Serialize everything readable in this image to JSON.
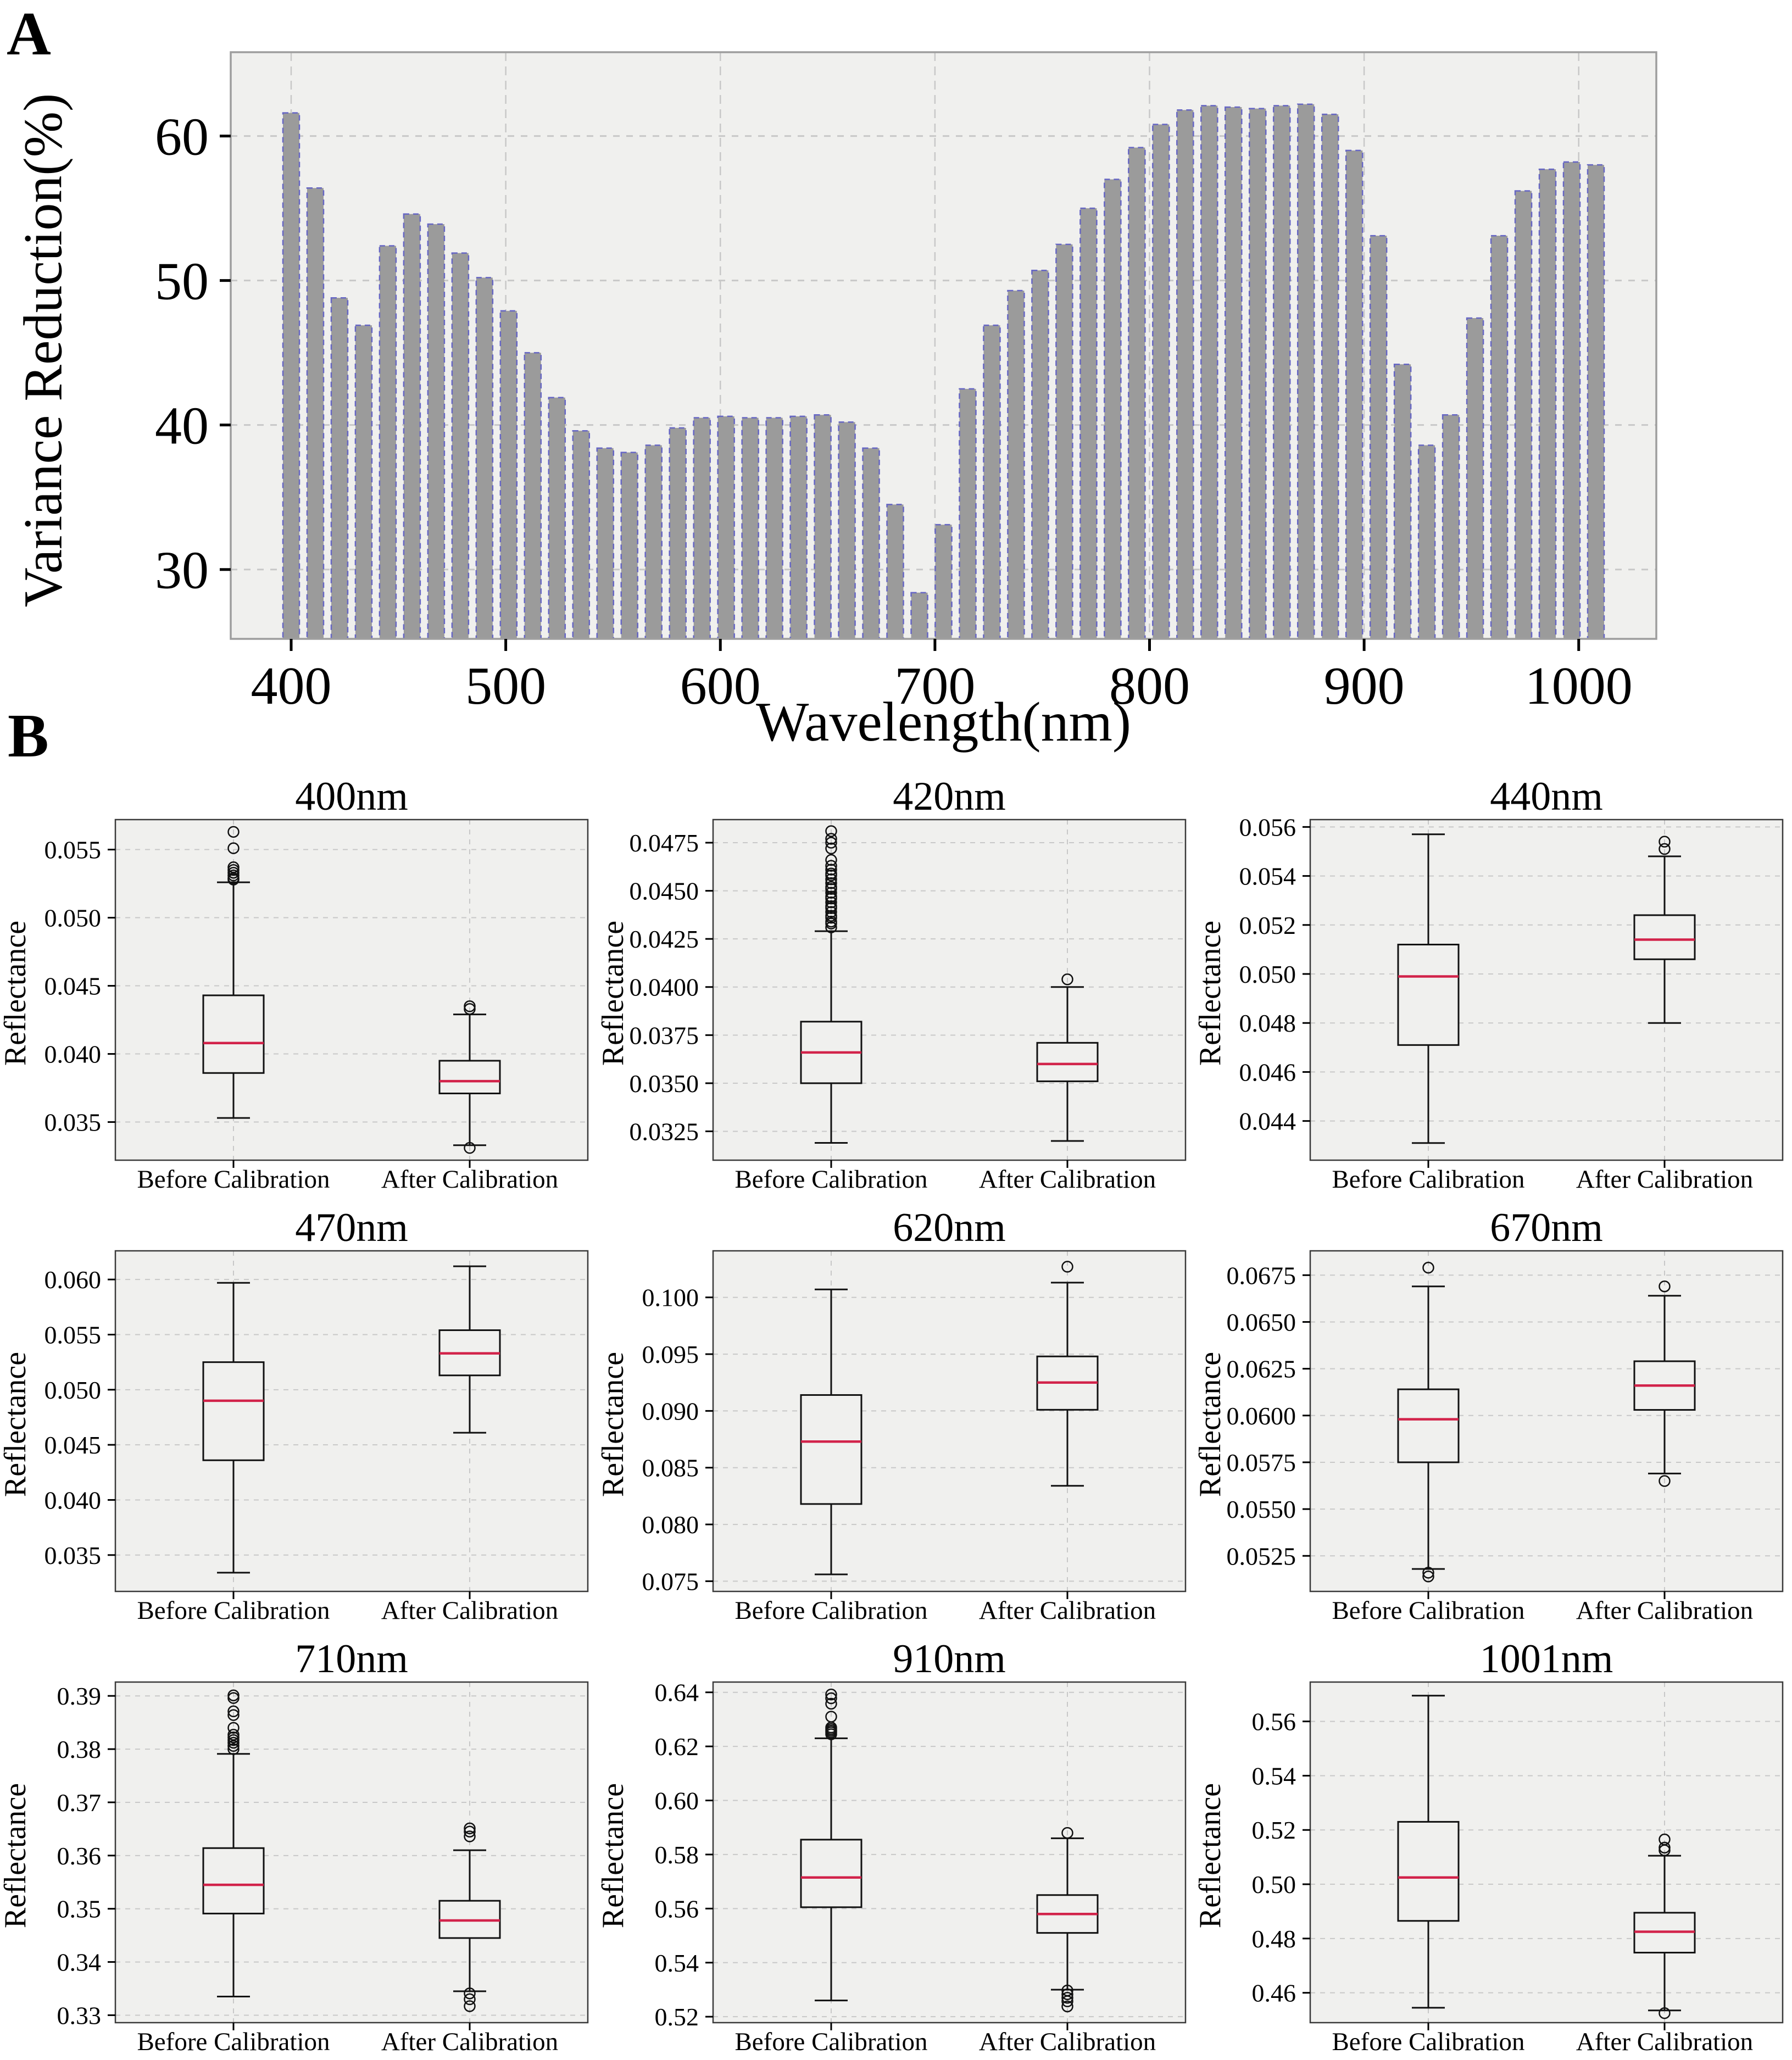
{
  "page": {
    "panel_a_label": "A",
    "panel_b_label": "B"
  },
  "colors": {
    "figure_bg": "#ffffff",
    "plot_bg": "#f0f0ee",
    "grid": "#c8c8c8",
    "bar_fill": "#9b9b9b",
    "bar_edge": "#6666c4",
    "spine_a": "#9e9e9e",
    "spine_b": "#3a3a3a",
    "box_line": "#111111",
    "median": "#d2234a",
    "tick_text": "#000000"
  },
  "chart_data": [
    {
      "type": "bar",
      "panel": "A",
      "title": "",
      "xlabel": "Wavelength(nm)",
      "ylabel": "Variance Reduction(%)",
      "xticks": [
        400,
        500,
        600,
        700,
        800,
        900,
        1000
      ],
      "yticks": [
        30,
        40,
        50,
        60
      ],
      "ylim": [
        25.2,
        65.8
      ],
      "grid": true,
      "x_wavelength_nm": [
        400,
        411,
        423,
        434,
        445,
        456,
        468,
        479,
        490,
        501,
        513,
        524,
        535,
        546,
        558,
        569,
        580,
        591,
        603,
        614,
        625,
        636,
        648,
        659,
        670,
        682,
        693,
        704,
        715,
        727,
        738,
        749,
        760,
        772,
        783,
        794,
        805,
        817,
        828,
        839,
        850,
        862,
        873,
        884,
        895,
        907,
        918,
        929,
        940,
        952,
        963,
        974,
        985,
        997,
        1008
      ],
      "values_percent": [
        61.6,
        56.4,
        48.8,
        46.9,
        52.4,
        54.6,
        53.9,
        51.9,
        50.2,
        47.9,
        45.0,
        41.9,
        39.6,
        38.4,
        38.1,
        38.6,
        39.8,
        40.5,
        40.6,
        40.5,
        40.5,
        40.6,
        40.7,
        40.2,
        38.4,
        34.5,
        28.4,
        33.1,
        42.5,
        46.9,
        49.3,
        50.7,
        52.5,
        55.0,
        57.0,
        59.2,
        60.8,
        61.8,
        62.1,
        62.0,
        61.9,
        62.1,
        62.2,
        61.5,
        59.0,
        53.1,
        44.2,
        38.6,
        40.7,
        47.4,
        53.1,
        56.2,
        57.7,
        58.2,
        58.0
      ]
    },
    {
      "type": "boxplot",
      "panel": "B",
      "ylabel": "Reflectance",
      "categories": [
        "Before Calibration",
        "After Calibration"
      ],
      "subplots": [
        {
          "title": "400nm",
          "ticklabels": [
            "0.035",
            "0.040",
            "0.045",
            "0.050",
            "0.055"
          ],
          "tickvals": [
            0.035,
            0.04,
            0.045,
            0.05,
            0.055
          ],
          "ylim": [
            0.0322,
            0.0572
          ],
          "before": {
            "whislo": 0.0353,
            "q1": 0.0386,
            "med": 0.0408,
            "q3": 0.0443,
            "whishi": 0.0526,
            "outliers": [
              0.0528,
              0.0529,
              0.0531,
              0.0533,
              0.0535,
              0.0537,
              0.0551,
              0.0563
            ]
          },
          "after": {
            "whislo": 0.0333,
            "q1": 0.0371,
            "med": 0.038,
            "q3": 0.0395,
            "whishi": 0.0429,
            "outliers": [
              0.0433,
              0.0435,
              0.0331
            ]
          }
        },
        {
          "title": "420nm",
          "ticklabels": [
            "0.0325",
            "0.0350",
            "0.0375",
            "0.0400",
            "0.0425",
            "0.0450",
            "0.0475"
          ],
          "tickvals": [
            0.0325,
            0.035,
            0.0375,
            0.04,
            0.0425,
            0.045,
            0.0475
          ],
          "ylim": [
            0.031,
            0.0487
          ],
          "before": {
            "whislo": 0.0319,
            "q1": 0.035,
            "med": 0.0366,
            "q3": 0.0382,
            "whishi": 0.0429,
            "outliers": [
              0.0431,
              0.0433,
              0.0434,
              0.0436,
              0.0437,
              0.0439,
              0.0441,
              0.0442,
              0.0444,
              0.0446,
              0.0447,
              0.0449,
              0.0451,
              0.0452,
              0.0454,
              0.0456,
              0.0458,
              0.0459,
              0.0461,
              0.0463,
              0.0466,
              0.0472,
              0.0475,
              0.0477,
              0.0481
            ]
          },
          "after": {
            "whislo": 0.032,
            "q1": 0.0351,
            "med": 0.036,
            "q3": 0.0371,
            "whishi": 0.04,
            "outliers": [
              0.0404
            ]
          }
        },
        {
          "title": "440nm",
          "ticklabels": [
            "0.044",
            "0.046",
            "0.048",
            "0.050",
            "0.052",
            "0.054",
            "0.056"
          ],
          "tickvals": [
            0.044,
            0.046,
            0.048,
            0.05,
            0.052,
            0.054,
            0.056
          ],
          "ylim": [
            0.0424,
            0.0563
          ],
          "before": {
            "whislo": 0.0431,
            "q1": 0.0471,
            "med": 0.0499,
            "q3": 0.0512,
            "whishi": 0.0557,
            "outliers": []
          },
          "after": {
            "whislo": 0.048,
            "q1": 0.0506,
            "med": 0.0514,
            "q3": 0.0524,
            "whishi": 0.0548,
            "outliers": [
              0.0551,
              0.0554
            ]
          }
        },
        {
          "title": "470nm",
          "ticklabels": [
            "0.035",
            "0.040",
            "0.045",
            "0.050",
            "0.055",
            "0.060"
          ],
          "tickvals": [
            0.035,
            0.04,
            0.045,
            0.05,
            0.055,
            0.06
          ],
          "ylim": [
            0.0317,
            0.0626
          ],
          "before": {
            "whislo": 0.0334,
            "q1": 0.0436,
            "med": 0.049,
            "q3": 0.0525,
            "whishi": 0.0597,
            "outliers": []
          },
          "after": {
            "whislo": 0.0461,
            "q1": 0.0513,
            "med": 0.0533,
            "q3": 0.0554,
            "whishi": 0.0612,
            "outliers": []
          }
        },
        {
          "title": "620nm",
          "ticklabels": [
            "0.075",
            "0.080",
            "0.085",
            "0.090",
            "0.095",
            "0.100"
          ],
          "tickvals": [
            0.075,
            0.08,
            0.085,
            0.09,
            0.095,
            0.1
          ],
          "ylim": [
            0.0741,
            0.1041
          ],
          "before": {
            "whislo": 0.0756,
            "q1": 0.0818,
            "med": 0.0873,
            "q3": 0.0914,
            "whishi": 0.1007,
            "outliers": []
          },
          "after": {
            "whislo": 0.0834,
            "q1": 0.0901,
            "med": 0.0925,
            "q3": 0.0948,
            "whishi": 0.1013,
            "outliers": [
              0.1027
            ]
          }
        },
        {
          "title": "670nm",
          "ticklabels": [
            "0.0525",
            "0.0550",
            "0.0575",
            "0.0600",
            "0.0625",
            "0.0650",
            "0.0675"
          ],
          "tickvals": [
            0.0525,
            0.055,
            0.0575,
            0.06,
            0.0625,
            0.065,
            0.0675
          ],
          "ylim": [
            0.0506,
            0.0688
          ],
          "before": {
            "whislo": 0.0518,
            "q1": 0.0575,
            "med": 0.0598,
            "q3": 0.0614,
            "whishi": 0.0669,
            "outliers": [
              0.0679,
              0.0516,
              0.0514
            ]
          },
          "after": {
            "whislo": 0.0569,
            "q1": 0.0603,
            "med": 0.0616,
            "q3": 0.0629,
            "whishi": 0.0664,
            "outliers": [
              0.0669,
              0.0565
            ]
          }
        },
        {
          "title": "710nm",
          "ticklabels": [
            "0.33",
            "0.34",
            "0.35",
            "0.36",
            "0.37",
            "0.38",
            "0.39"
          ],
          "tickvals": [
            0.33,
            0.34,
            0.35,
            0.36,
            0.37,
            0.38,
            0.39
          ],
          "ylim": [
            0.3286,
            0.3926
          ],
          "before": {
            "whislo": 0.3335,
            "q1": 0.3491,
            "med": 0.3545,
            "q3": 0.3614,
            "whishi": 0.3791,
            "outliers": [
              0.38,
              0.3806,
              0.3812,
              0.3817,
              0.3822,
              0.3827,
              0.384,
              0.3864,
              0.3871,
              0.3896,
              0.3901
            ]
          },
          "after": {
            "whislo": 0.3345,
            "q1": 0.3445,
            "med": 0.3478,
            "q3": 0.3515,
            "whishi": 0.361,
            "outliers": [
              0.3636,
              0.3645,
              0.3651,
              0.3341,
              0.333,
              0.3317
            ]
          }
        },
        {
          "title": "910nm",
          "ticklabels": [
            "0.52",
            "0.54",
            "0.56",
            "0.58",
            "0.60",
            "0.62",
            "0.64"
          ],
          "tickvals": [
            0.52,
            0.54,
            0.56,
            0.58,
            0.6,
            0.62,
            0.64
          ],
          "ylim": [
            0.5178,
            0.6438
          ],
          "before": {
            "whislo": 0.526,
            "q1": 0.5605,
            "med": 0.5715,
            "q3": 0.5855,
            "whishi": 0.623,
            "outliers": [
              0.6245,
              0.6252,
              0.6258,
              0.6264,
              0.627,
              0.631,
              0.6358,
              0.6378,
              0.6392
            ]
          },
          "after": {
            "whislo": 0.53,
            "q1": 0.551,
            "med": 0.558,
            "q3": 0.565,
            "whishi": 0.586,
            "outliers": [
              0.588,
              0.5297,
              0.5283,
              0.527,
              0.5257,
              0.5238
            ]
          }
        },
        {
          "title": "1001nm",
          "ticklabels": [
            "0.46",
            "0.48",
            "0.50",
            "0.52",
            "0.54",
            "0.56"
          ],
          "tickvals": [
            0.46,
            0.48,
            0.5,
            0.52,
            0.54,
            0.56
          ],
          "ylim": [
            0.449,
            0.5745
          ],
          "before": {
            "whislo": 0.4545,
            "q1": 0.4865,
            "med": 0.5025,
            "q3": 0.523,
            "whishi": 0.5695,
            "outliers": []
          },
          "after": {
            "whislo": 0.4535,
            "q1": 0.4748,
            "med": 0.4825,
            "q3": 0.4895,
            "whishi": 0.5105,
            "outliers": [
              0.5125,
              0.5135,
              0.5165,
              0.4525
            ]
          }
        }
      ]
    }
  ]
}
